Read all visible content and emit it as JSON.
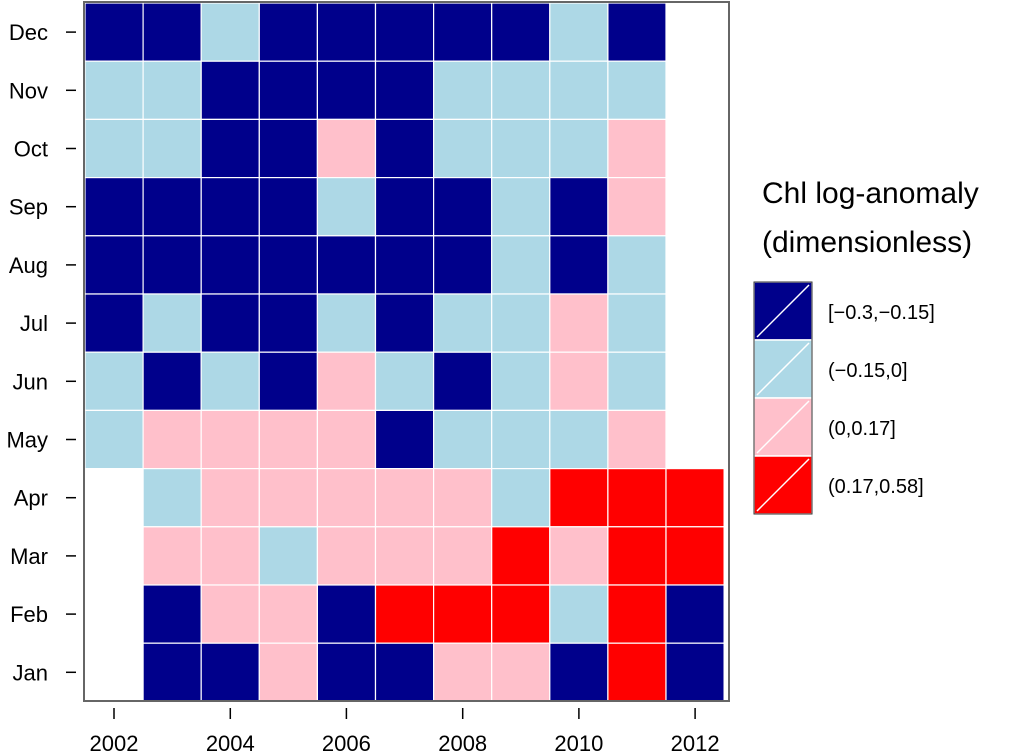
{
  "chart_data": {
    "type": "heatmap",
    "title": "",
    "xlabel": "",
    "ylabel": "",
    "x": [
      2002,
      2003,
      2004,
      2005,
      2006,
      2007,
      2008,
      2009,
      2010,
      2011,
      2012
    ],
    "x_tick_labels": [
      "2002",
      "2004",
      "2006",
      "2008",
      "2010",
      "2012"
    ],
    "x_tick_values": [
      2002,
      2004,
      2006,
      2008,
      2010,
      2012
    ],
    "y": [
      "Jan",
      "Feb",
      "Mar",
      "Apr",
      "May",
      "Jun",
      "Jul",
      "Aug",
      "Sep",
      "Oct",
      "Nov",
      "Dec"
    ],
    "legend": {
      "title_line1": "Chl log-anomaly",
      "title_line2": "(dimensionless)",
      "placement": "right",
      "bins": [
        {
          "label": "[−0.3,−0.15]",
          "color": "#00008B"
        },
        {
          "label": "(−0.15,0]",
          "color": "#ADD8E6"
        },
        {
          "label": "(0,0.17]",
          "color": "#FFC0CB"
        },
        {
          "label": "(0.17,0.58]",
          "color": "#FF0000"
        }
      ]
    },
    "values_by_month": {
      "Dec": [
        0,
        0,
        1,
        0,
        0,
        0,
        0,
        0,
        1,
        0,
        null
      ],
      "Nov": [
        1,
        1,
        0,
        0,
        0,
        0,
        1,
        1,
        1,
        1,
        null
      ],
      "Oct": [
        1,
        1,
        0,
        0,
        2,
        0,
        1,
        1,
        1,
        2,
        null
      ],
      "Sep": [
        0,
        0,
        0,
        0,
        1,
        0,
        0,
        1,
        0,
        2,
        null
      ],
      "Aug": [
        0,
        0,
        0,
        0,
        0,
        0,
        0,
        1,
        0,
        1,
        null
      ],
      "Jul": [
        0,
        1,
        0,
        0,
        1,
        0,
        1,
        1,
        2,
        1,
        null
      ],
      "Jun": [
        1,
        0,
        1,
        0,
        2,
        1,
        0,
        1,
        2,
        1,
        null
      ],
      "May": [
        1,
        2,
        2,
        2,
        2,
        0,
        1,
        1,
        1,
        2,
        null
      ],
      "Apr": [
        null,
        1,
        2,
        2,
        2,
        2,
        2,
        1,
        3,
        3,
        3
      ],
      "Mar": [
        null,
        2,
        2,
        1,
        2,
        2,
        2,
        3,
        2,
        3,
        3
      ],
      "Feb": [
        null,
        0,
        2,
        2,
        0,
        3,
        3,
        3,
        1,
        3,
        0
      ],
      "Jan": [
        null,
        0,
        0,
        2,
        0,
        0,
        2,
        2,
        0,
        3,
        0
      ]
    }
  }
}
